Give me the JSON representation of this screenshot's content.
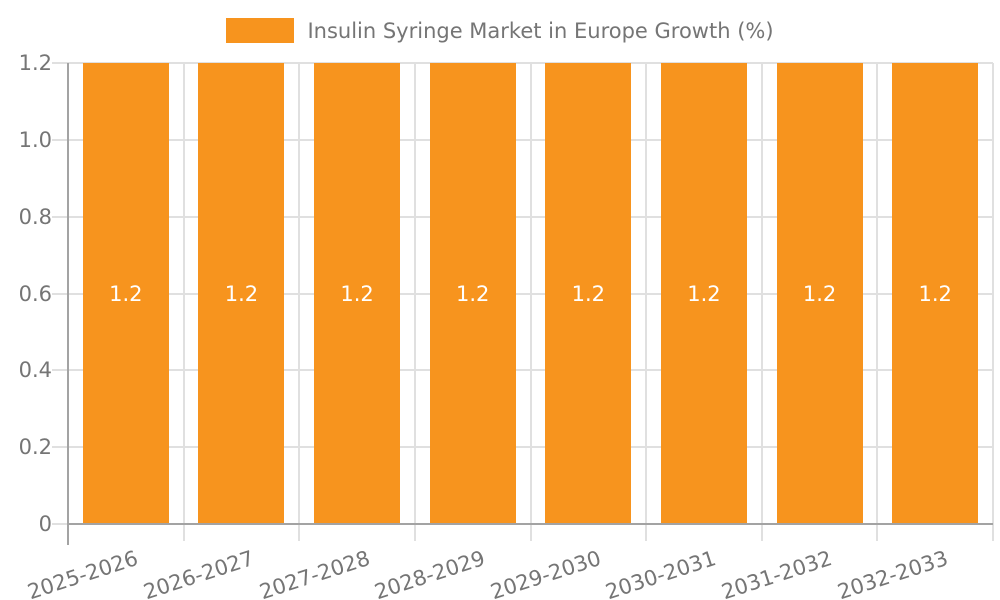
{
  "chart_data": {
    "type": "bar",
    "title": "Insulin Syringe Market in Europe Growth (%)",
    "legend": {
      "position": "top",
      "entries": [
        "Insulin Syringe Market in Europe Growth (%)"
      ]
    },
    "categories": [
      "2025-2026",
      "2026-2027",
      "2027-2028",
      "2028-2029",
      "2029-2030",
      "2030-2031",
      "2031-2032",
      "2032-2033"
    ],
    "series": [
      {
        "name": "Insulin Syringe Market in Europe Growth (%)",
        "values": [
          1.2,
          1.2,
          1.2,
          1.2,
          1.2,
          1.2,
          1.2,
          1.2
        ],
        "point_labels": [
          "1.2",
          "1.2",
          "1.2",
          "1.2",
          "1.2",
          "1.2",
          "1.2",
          "1.2"
        ]
      }
    ],
    "xlabel": "",
    "ylabel": "",
    "ylim": [
      0,
      1.2
    ],
    "y_ticks": [
      {
        "value": 0,
        "label": "0"
      },
      {
        "value": 0.2,
        "label": "0.2"
      },
      {
        "value": 0.4,
        "label": "0.4"
      },
      {
        "value": 0.6,
        "label": "0.6"
      },
      {
        "value": 0.8,
        "label": "0.8"
      },
      {
        "value": 1.0,
        "label": "1.0"
      },
      {
        "value": 1.2,
        "label": "1.2"
      }
    ],
    "grid": true
  },
  "colors": {
    "bar": "#F7941E",
    "axis_text": "#757575",
    "axis_line": "#A3A3A3",
    "gridline": "#E0E0E0",
    "value_label": "#FFFFFF",
    "background": "#FFFFFF"
  }
}
